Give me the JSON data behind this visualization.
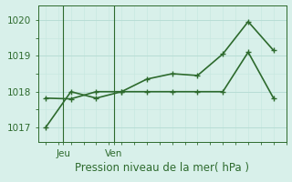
{
  "line1_x": [
    0,
    1,
    2,
    3,
    4,
    5,
    6,
    7,
    8,
    9
  ],
  "line1_y": [
    1017.0,
    1018.0,
    1017.82,
    1018.0,
    1018.35,
    1018.5,
    1018.45,
    1019.05,
    1019.95,
    1019.15
  ],
  "line2_x": [
    0,
    1,
    2,
    3,
    4,
    5,
    6,
    7,
    8,
    9
  ],
  "line2_y": [
    1017.82,
    1017.8,
    1018.0,
    1018.0,
    1018.0,
    1018.0,
    1018.0,
    1018.0,
    1019.1,
    1017.82
  ],
  "line_color": "#2d6a2d",
  "bg_color": "#d8f0ea",
  "grid_color_major": "#b8ddd5",
  "grid_color_minor": "#c8e8e0",
  "xlabel": "Pression niveau de la mer( hPa )",
  "jeu_x": 0.7,
  "ven_x": 2.7,
  "yticks": [
    1017,
    1018,
    1019,
    1020
  ],
  "ylim": [
    1016.6,
    1020.4
  ],
  "xlim": [
    -0.3,
    9.5
  ],
  "xlabel_fontsize": 8.5,
  "tick_fontsize": 7.5,
  "line_width": 1.2,
  "marker_size": 3.0
}
